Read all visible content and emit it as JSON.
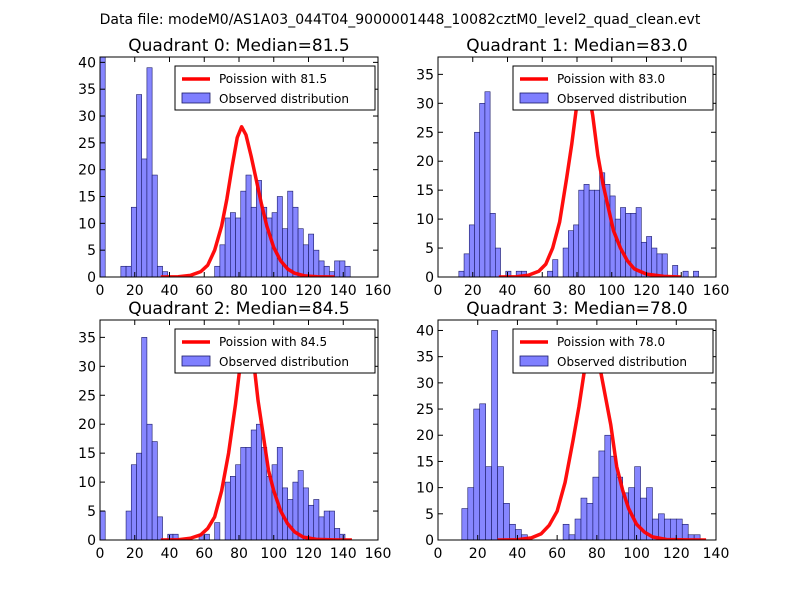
{
  "figure_title": "Data file: modeM0/AS1A03_044T04_9000001448_10082cztM0_level2_quad_clean.evt",
  "colors": {
    "bar_fill": "#7f7fff",
    "bar_edge": "#1a1a66",
    "poisson_line": "#ff0000",
    "frame": "#000000",
    "background": "#ffffff"
  },
  "chart_data": [
    {
      "type": "bar+line",
      "title": "Quadrant 0: Median=81.5",
      "xlim": [
        0,
        160
      ],
      "ylim": [
        0,
        41
      ],
      "xticks": [
        0,
        20,
        40,
        60,
        80,
        100,
        120,
        140,
        160
      ],
      "yticks": [
        0,
        5,
        10,
        15,
        20,
        25,
        30,
        35,
        40
      ],
      "bin_width": 3,
      "histogram": {
        "name": "Observed distribution",
        "bin_starts": [
          0,
          12,
          15,
          18,
          21,
          24,
          27,
          30,
          33,
          36,
          66,
          69,
          72,
          75,
          78,
          81,
          84,
          87,
          90,
          93,
          96,
          99,
          102,
          105,
          108,
          111,
          114,
          117,
          120,
          123,
          126,
          129,
          132,
          135,
          138,
          141
        ],
        "counts": [
          41,
          2,
          2,
          13,
          34,
          22,
          39,
          19,
          2,
          1,
          2,
          6,
          11,
          12,
          11,
          16,
          19,
          13,
          18,
          13,
          11,
          12,
          15,
          9,
          16,
          13,
          9,
          6,
          8,
          5,
          3,
          2,
          1,
          3,
          3,
          2
        ]
      },
      "poisson": {
        "name": "Poission with 81.5",
        "mean": 81.5,
        "x": [
          35,
          45,
          52,
          58,
          62,
          66,
          70,
          73,
          76,
          79,
          81.5,
          84,
          87,
          90,
          93,
          96,
          100,
          104,
          108,
          112,
          118,
          125,
          135
        ],
        "y": [
          0,
          0.05,
          0.3,
          1.0,
          2.2,
          5.0,
          9.5,
          14.5,
          20.5,
          26,
          28,
          26.5,
          22.5,
          18,
          13.5,
          9.5,
          5.5,
          3,
          1.5,
          0.7,
          0.2,
          0.05,
          0
        ]
      },
      "legend": [
        "Poission with 81.5",
        "Observed distribution"
      ],
      "legend_location": "top-right"
    },
    {
      "type": "bar+line",
      "title": "Quadrant 1: Median=83.0",
      "xlim": [
        0,
        160
      ],
      "ylim": [
        0,
        38
      ],
      "xticks": [
        0,
        20,
        40,
        60,
        80,
        100,
        120,
        140,
        160
      ],
      "yticks": [
        0,
        5,
        10,
        15,
        20,
        25,
        30,
        35
      ],
      "bin_width": 3,
      "histogram": {
        "name": "Observed distribution",
        "bin_starts": [
          12,
          15,
          18,
          21,
          24,
          27,
          30,
          33,
          39,
          45,
          48,
          63,
          66,
          72,
          75,
          78,
          81,
          84,
          87,
          90,
          93,
          96,
          99,
          102,
          105,
          108,
          111,
          114,
          117,
          120,
          123,
          126,
          129,
          135,
          141,
          147
        ],
        "counts": [
          1,
          4,
          9,
          25,
          30,
          32,
          11,
          5,
          1,
          1,
          1,
          1,
          3,
          5,
          8,
          9,
          15,
          16,
          15,
          15,
          18,
          16,
          14,
          10,
          12,
          11,
          11,
          12,
          6,
          7,
          5,
          4,
          4,
          2,
          1,
          1
        ]
      },
      "poisson": {
        "name": "Poission with 83.0",
        "mean": 83.0,
        "x": [
          35,
          45,
          52,
          58,
          62,
          66,
          70,
          74,
          77,
          80,
          83,
          86,
          89,
          92,
          95,
          98,
          101,
          105,
          109,
          113,
          120,
          130,
          140
        ],
        "y": [
          0,
          0.05,
          0.3,
          1.0,
          2.2,
          5.0,
          9.5,
          17,
          23,
          30,
          36,
          33,
          28,
          21,
          16,
          12,
          8,
          5,
          2.8,
          1.4,
          0.5,
          0.1,
          0
        ]
      },
      "legend": [
        "Poission with 83.0",
        "Observed distribution"
      ],
      "legend_location": "top-right"
    },
    {
      "type": "bar+line",
      "title": "Quadrant 2: Median=84.5",
      "xlim": [
        0,
        160
      ],
      "ylim": [
        0,
        38
      ],
      "xticks": [
        0,
        20,
        40,
        60,
        80,
        100,
        120,
        140,
        160
      ],
      "yticks": [
        0,
        5,
        10,
        15,
        20,
        25,
        30,
        35
      ],
      "bin_width": 3,
      "histogram": {
        "name": "Observed distribution",
        "bin_starts": [
          0,
          15,
          18,
          21,
          24,
          27,
          30,
          33,
          39,
          42,
          57,
          60,
          66,
          72,
          75,
          78,
          81,
          84,
          87,
          90,
          93,
          96,
          99,
          102,
          105,
          108,
          111,
          114,
          117,
          120,
          123,
          126,
          129,
          132,
          135,
          138
        ],
        "counts": [
          5,
          5,
          13,
          15,
          35,
          20,
          17,
          4,
          1,
          1,
          1,
          1,
          3,
          10,
          11,
          13,
          16,
          16,
          19,
          20,
          16,
          11,
          13,
          16,
          9,
          7,
          10,
          12,
          9,
          6,
          7,
          4,
          5,
          5,
          2,
          1
        ]
      },
      "poisson": {
        "name": "Poission with 84.5",
        "mean": 84.5,
        "x": [
          35,
          45,
          52,
          58,
          62,
          66,
          70,
          74,
          78,
          81,
          84.5,
          88,
          91,
          94,
          97,
          100,
          104,
          108,
          112,
          117,
          125,
          135,
          145
        ],
        "y": [
          0,
          0.05,
          0.3,
          0.9,
          2.0,
          4.0,
          8.5,
          15,
          23.5,
          31,
          36,
          32,
          24,
          18,
          12,
          8.5,
          5,
          2.8,
          1.4,
          0.5,
          0.1,
          0.02,
          0
        ]
      },
      "legend": [
        "Poission with 84.5",
        "Observed distribution"
      ],
      "legend_location": "top-right"
    },
    {
      "type": "bar+line",
      "title": "Quadrant 3: Median=78.0",
      "xlim": [
        0,
        140
      ],
      "ylim": [
        0,
        42
      ],
      "xticks": [
        0,
        20,
        40,
        60,
        80,
        100,
        120,
        140
      ],
      "yticks": [
        0,
        5,
        10,
        15,
        20,
        25,
        30,
        35,
        40
      ],
      "bin_width": 3,
      "histogram": {
        "name": "Observed distribution",
        "bin_starts": [
          12,
          15,
          18,
          21,
          24,
          27,
          30,
          33,
          36,
          39,
          42,
          63,
          66,
          69,
          72,
          75,
          78,
          81,
          84,
          87,
          90,
          93,
          96,
          99,
          102,
          105,
          108,
          111,
          114,
          117,
          120,
          123,
          126,
          129
        ],
        "counts": [
          6,
          10,
          25,
          26,
          14,
          40,
          14,
          7,
          3,
          2,
          1,
          3,
          1,
          4,
          8,
          7,
          12,
          17,
          20,
          16,
          12,
          9,
          10,
          14,
          8,
          10,
          4,
          5,
          4,
          4,
          4,
          3,
          1,
          1
        ]
      },
      "poisson": {
        "name": "Poission with 78.0",
        "mean": 78.0,
        "x": [
          30,
          40,
          47,
          52,
          56,
          60,
          64,
          68,
          71,
          74,
          78,
          81,
          84,
          87,
          90,
          93,
          96,
          100,
          104,
          108,
          115,
          125,
          135
        ],
        "y": [
          0,
          0.05,
          0.4,
          1.2,
          2.8,
          5.5,
          11,
          19,
          25.5,
          33,
          38,
          34,
          28,
          22,
          14,
          9.5,
          6,
          3,
          1.5,
          0.6,
          0.1,
          0.02,
          0
        ]
      },
      "legend": [
        "Poission with 78.0",
        "Observed distribution"
      ],
      "legend_location": "top-right"
    }
  ]
}
